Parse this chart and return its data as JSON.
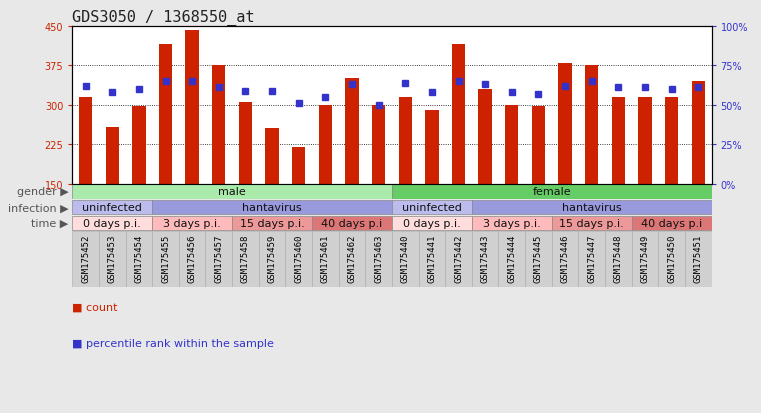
{
  "title": "GDS3050 / 1368550_at",
  "samples": [
    "GSM175452",
    "GSM175453",
    "GSM175454",
    "GSM175455",
    "GSM175456",
    "GSM175457",
    "GSM175458",
    "GSM175459",
    "GSM175460",
    "GSM175461",
    "GSM175462",
    "GSM175463",
    "GSM175440",
    "GSM175441",
    "GSM175442",
    "GSM175443",
    "GSM175444",
    "GSM175445",
    "GSM175446",
    "GSM175447",
    "GSM175448",
    "GSM175449",
    "GSM175450",
    "GSM175451"
  ],
  "counts": [
    315,
    258,
    298,
    415,
    443,
    375,
    305,
    255,
    220,
    300,
    350,
    300,
    315,
    290,
    415,
    330,
    300,
    298,
    380,
    375,
    315,
    315,
    315,
    345
  ],
  "percentiles": [
    62,
    58,
    60,
    65,
    65,
    61,
    59,
    59,
    51,
    55,
    63,
    50,
    64,
    58,
    65,
    63,
    58,
    57,
    62,
    65,
    61,
    61,
    60,
    61
  ],
  "ylim_left": [
    150,
    450
  ],
  "ylim_right": [
    0,
    100
  ],
  "yticks_left": [
    150,
    225,
    300,
    375,
    450
  ],
  "yticks_right": [
    0,
    25,
    50,
    75,
    100
  ],
  "ytick_labels_right": [
    "0%",
    "25%",
    "50%",
    "75%",
    "100%"
  ],
  "bar_color": "#cc2200",
  "dot_color": "#3333cc",
  "bg_color": "#e8e8e8",
  "plot_bg": "#ffffff",
  "xtick_bg": "#d0d0d0",
  "gender_groups": [
    {
      "label": "male",
      "start": 0,
      "end": 12,
      "color": "#aaeaaa"
    },
    {
      "label": "female",
      "start": 12,
      "end": 24,
      "color": "#66cc66"
    }
  ],
  "infection_groups": [
    {
      "label": "uninfected",
      "start": 0,
      "end": 3,
      "color": "#bbbbee"
    },
    {
      "label": "hantavirus",
      "start": 3,
      "end": 12,
      "color": "#9999dd"
    },
    {
      "label": "uninfected",
      "start": 12,
      "end": 15,
      "color": "#bbbbee"
    },
    {
      "label": "hantavirus",
      "start": 15,
      "end": 24,
      "color": "#9999dd"
    }
  ],
  "time_groups": [
    {
      "label": "0 days p.i.",
      "start": 0,
      "end": 3,
      "color": "#ffdddd"
    },
    {
      "label": "3 days p.i.",
      "start": 3,
      "end": 6,
      "color": "#ffbbbb"
    },
    {
      "label": "15 days p.i.",
      "start": 6,
      "end": 9,
      "color": "#ee9999"
    },
    {
      "label": "40 days p.i",
      "start": 9,
      "end": 12,
      "color": "#dd7777"
    },
    {
      "label": "0 days p.i.",
      "start": 12,
      "end": 15,
      "color": "#ffdddd"
    },
    {
      "label": "3 days p.i.",
      "start": 15,
      "end": 18,
      "color": "#ffbbbb"
    },
    {
      "label": "15 days p.i.",
      "start": 18,
      "end": 21,
      "color": "#ee9999"
    },
    {
      "label": "40 days p.i",
      "start": 21,
      "end": 24,
      "color": "#dd7777"
    }
  ],
  "row_label_color": "#555555",
  "title_fontsize": 11,
  "tick_fontsize": 7,
  "label_fontsize": 8,
  "annotation_fontsize": 8
}
